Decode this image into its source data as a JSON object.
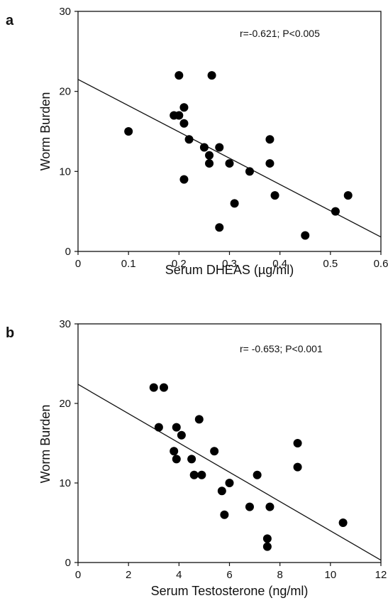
{
  "chart_data": [
    {
      "panel": "a",
      "type": "scatter",
      "xlabel": "Serum DHEAS (µg/ml)",
      "ylabel": "Worm Burden",
      "annotation": "r=-0.621; P<0.005",
      "xlim": [
        0,
        0.6
      ],
      "ylim": [
        0,
        30
      ],
      "xticks": [
        "0",
        "0.1",
        "0.2",
        "0.3",
        "0.4",
        "0.5",
        "0.6"
      ],
      "yticks": [
        "0",
        "10",
        "20",
        "30"
      ],
      "points": [
        {
          "x": 0.1,
          "y": 15
        },
        {
          "x": 0.19,
          "y": 17
        },
        {
          "x": 0.2,
          "y": 22
        },
        {
          "x": 0.2,
          "y": 17
        },
        {
          "x": 0.21,
          "y": 18
        },
        {
          "x": 0.21,
          "y": 16
        },
        {
          "x": 0.21,
          "y": 9
        },
        {
          "x": 0.22,
          "y": 14
        },
        {
          "x": 0.25,
          "y": 13
        },
        {
          "x": 0.26,
          "y": 12
        },
        {
          "x": 0.26,
          "y": 11
        },
        {
          "x": 0.265,
          "y": 22
        },
        {
          "x": 0.28,
          "y": 13
        },
        {
          "x": 0.28,
          "y": 3
        },
        {
          "x": 0.3,
          "y": 11
        },
        {
          "x": 0.31,
          "y": 6
        },
        {
          "x": 0.34,
          "y": 10
        },
        {
          "x": 0.38,
          "y": 14
        },
        {
          "x": 0.38,
          "y": 11
        },
        {
          "x": 0.39,
          "y": 7
        },
        {
          "x": 0.45,
          "y": 2
        },
        {
          "x": 0.51,
          "y": 5
        },
        {
          "x": 0.535,
          "y": 7
        }
      ],
      "fit_line": {
        "x": [
          0,
          0.6
        ],
        "y": [
          21.5,
          1.8
        ]
      }
    },
    {
      "panel": "b",
      "type": "scatter",
      "xlabel": "Serum Testosterone (ng/ml)",
      "ylabel": "Worm Burden",
      "annotation": "r= -0.653; P<0.001",
      "xlim": [
        0,
        12
      ],
      "ylim": [
        0,
        30
      ],
      "xticks": [
        "0",
        "2",
        "4",
        "6",
        "8",
        "10",
        "12"
      ],
      "yticks": [
        "0",
        "10",
        "20",
        "30"
      ],
      "points": [
        {
          "x": 3.0,
          "y": 22
        },
        {
          "x": 3.4,
          "y": 22
        },
        {
          "x": 3.2,
          "y": 17
        },
        {
          "x": 3.8,
          "y": 14
        },
        {
          "x": 3.9,
          "y": 13
        },
        {
          "x": 3.9,
          "y": 17
        },
        {
          "x": 4.1,
          "y": 16
        },
        {
          "x": 4.5,
          "y": 13
        },
        {
          "x": 4.6,
          "y": 11
        },
        {
          "x": 4.8,
          "y": 18
        },
        {
          "x": 4.9,
          "y": 11
        },
        {
          "x": 5.4,
          "y": 14
        },
        {
          "x": 5.7,
          "y": 9
        },
        {
          "x": 5.8,
          "y": 6
        },
        {
          "x": 6.0,
          "y": 10
        },
        {
          "x": 6.8,
          "y": 7
        },
        {
          "x": 7.1,
          "y": 11
        },
        {
          "x": 7.5,
          "y": 3
        },
        {
          "x": 7.5,
          "y": 2
        },
        {
          "x": 7.6,
          "y": 7
        },
        {
          "x": 8.7,
          "y": 15
        },
        {
          "x": 8.7,
          "y": 12
        },
        {
          "x": 10.5,
          "y": 5
        }
      ],
      "fit_line": {
        "x": [
          0,
          12
        ],
        "y": [
          22.4,
          0.3
        ]
      }
    }
  ],
  "panels": {
    "a": {
      "letter": "a"
    },
    "b": {
      "letter": "b"
    }
  }
}
